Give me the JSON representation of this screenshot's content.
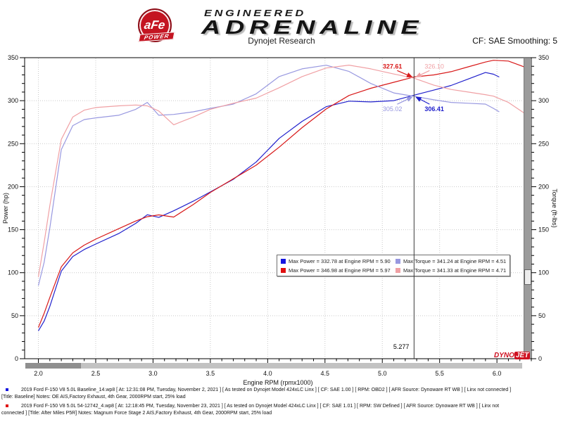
{
  "header": {
    "badge_line1": "aFe",
    "badge_line2": "POWER",
    "engineered": "ENGINEERED",
    "adrenaline": "ADRENALINE"
  },
  "subheader": {
    "title": "Dynojet Research",
    "cf_label": "CF: SAE Smoothing: 5"
  },
  "chart_data": {
    "type": "line",
    "xlabel": "Engine RPM (rpmx1000)",
    "ylabel_left": "Power (hp)",
    "ylabel_right": "Torque (ft-lbs)",
    "xlim": [
      1.88,
      6.3
    ],
    "ylim_left": [
      0,
      350
    ],
    "ylim_right": [
      0,
      350
    ],
    "x_major_ticks": [
      2.0,
      2.5,
      3.0,
      3.5,
      4.0,
      4.5,
      5.0,
      5.5,
      6.0
    ],
    "y_major_ticks": [
      0,
      50,
      100,
      150,
      200,
      250,
      300,
      350
    ],
    "grid": true,
    "legend_position": "center-bottom-inside",
    "cursor": {
      "rpm": 5.277,
      "label": "5.277"
    },
    "series": [
      {
        "name": "Baseline Power",
        "axis": "left",
        "units": "hp",
        "color": "#2020cc",
        "x": [
          2.0,
          2.05,
          2.1,
          2.2,
          2.3,
          2.4,
          2.5,
          2.7,
          2.85,
          2.95,
          3.05,
          3.18,
          3.35,
          3.5,
          3.7,
          3.9,
          4.1,
          4.3,
          4.51,
          4.71,
          4.9,
          5.1,
          5.277,
          5.45,
          5.6,
          5.75,
          5.9,
          5.97,
          6.02
        ],
        "values": [
          32.4,
          43.7,
          60.8,
          101.8,
          118.7,
          127.0,
          133.3,
          145.5,
          157.4,
          167.4,
          164.3,
          172.0,
          183.1,
          193.9,
          208.5,
          228.7,
          256.1,
          275.9,
          293.0,
          299.5,
          298.6,
          300.0,
          306.41,
          312.3,
          317.7,
          325.2,
          332.78,
          330.8,
          327.5
        ]
      },
      {
        "name": "After Miles P5R Power",
        "axis": "left",
        "units": "hp",
        "color": "#d81818",
        "x": [
          2.0,
          2.05,
          2.1,
          2.2,
          2.3,
          2.4,
          2.5,
          2.7,
          2.85,
          2.95,
          3.05,
          3.18,
          3.35,
          3.5,
          3.7,
          3.9,
          4.1,
          4.3,
          4.51,
          4.71,
          4.9,
          5.1,
          5.277,
          5.45,
          5.6,
          5.75,
          5.9,
          5.97,
          6.1,
          6.2,
          6.28
        ],
        "values": [
          36.2,
          52.7,
          71.2,
          106.8,
          123.1,
          132.1,
          139.0,
          151.1,
          160.1,
          165.1,
          167.2,
          164.7,
          179.2,
          193.3,
          209.2,
          225.0,
          245.9,
          268.6,
          290.3,
          306.1,
          314.4,
          321.4,
          327.61,
          330.0,
          333.7,
          339.4,
          344.9,
          346.98,
          346.1,
          341.2,
          337.2
        ]
      },
      {
        "name": "Baseline Torque",
        "axis": "right",
        "units": "ft-lbs",
        "color": "#9898e0",
        "x": [
          2.0,
          2.05,
          2.1,
          2.2,
          2.3,
          2.4,
          2.5,
          2.7,
          2.85,
          2.95,
          3.05,
          3.18,
          3.35,
          3.5,
          3.7,
          3.9,
          4.1,
          4.3,
          4.51,
          4.71,
          4.9,
          5.1,
          5.277,
          5.45,
          5.6,
          5.75,
          5.9,
          5.97,
          6.02
        ],
        "values": [
          85,
          112,
          152,
          243,
          271,
          278,
          280,
          283,
          290,
          298,
          283,
          284,
          287,
          291,
          296,
          308,
          328,
          337,
          341.24,
          334,
          320,
          309,
          305.02,
          301,
          298,
          297,
          296,
          291,
          287
        ]
      },
      {
        "name": "After Miles P5R Torque",
        "axis": "right",
        "units": "ft-lbs",
        "color": "#f0a0a4",
        "x": [
          2.0,
          2.05,
          2.1,
          2.2,
          2.3,
          2.4,
          2.5,
          2.7,
          2.85,
          2.95,
          3.05,
          3.18,
          3.35,
          3.5,
          3.7,
          3.9,
          4.1,
          4.3,
          4.51,
          4.71,
          4.9,
          5.1,
          5.277,
          5.45,
          5.6,
          5.75,
          5.9,
          5.97,
          6.1,
          6.2,
          6.28
        ],
        "values": [
          95,
          135,
          178,
          255,
          281,
          289,
          292,
          294,
          295,
          294,
          288,
          272,
          281,
          290,
          297,
          303,
          315,
          328,
          338,
          341.33,
          337,
          331,
          326.1,
          318,
          313,
          310,
          307,
          305.3,
          298,
          289,
          282
        ]
      }
    ],
    "annotations": [
      {
        "text": "327.61",
        "color": "#d81818",
        "bold": true,
        "side": "left",
        "row": "power"
      },
      {
        "text": "326.10",
        "color": "#f0a0a4",
        "bold": false,
        "side": "right",
        "row": "power"
      },
      {
        "text": "305.02",
        "color": "#9898e0",
        "bold": false,
        "side": "left",
        "row": "torque"
      },
      {
        "text": "306.41",
        "color": "#2020cc",
        "bold": true,
        "side": "right",
        "row": "torque"
      }
    ],
    "legend": {
      "items": [
        {
          "color": "#1515e0",
          "text": "Max Power = 332.78 at Engine RPM = 5.90"
        },
        {
          "color": "#e01010",
          "text": "Max Power = 346.98 at Engine RPM = 5.97"
        },
        {
          "color": "#9898e0",
          "text": "Max Torque = 341.24 at Engine RPM = 4.51"
        },
        {
          "color": "#f0a0a4",
          "text": "Max Torque = 341.33 at Engine RPM = 4.71"
        }
      ]
    }
  },
  "watermark": {
    "dyno": "DYNO",
    "jet": "JET"
  },
  "footer": {
    "runs": [
      {
        "bullet_color": "#1515e0",
        "lines": [
          "2019 Ford F-150 V8 5.0L Baseline_14.wp8 [ At: 12:31:08 PM, Tuesday, November 2, 2021 ] [ As tested on Dynojet Model 424xLC Linx ] [ CF: SAE 1.00 ] [ RPM: OBD2 ] [ AFR Source: Dynoware RT WB ] [ Linx not connected ]",
          "[Title: Baseline]  Notes: OE AIS,Factory Exhaust, 4th Gear, 2000RPM start, 25% load"
        ]
      },
      {
        "bullet_color": "#e01010",
        "lines": [
          "2019 Ford F-150 V8 5.0L 54-12742_4.wp8 [ At: 12:18:45 PM, Tuesday, November 23, 2021 ] [ As tested on Dynojet Model 424xLC Linx ] [ CF: SAE 1.01 ] [ RPM: SW Defined ] [ AFR Source: Dynoware RT WB ] [ Linx not",
          "connected ] [Title: After Miles P5R]  Notes: Magnum Force Stage 2  AIS,Factory Exhaust, 4th Gear, 2000RPM start, 25% load"
        ]
      }
    ]
  }
}
